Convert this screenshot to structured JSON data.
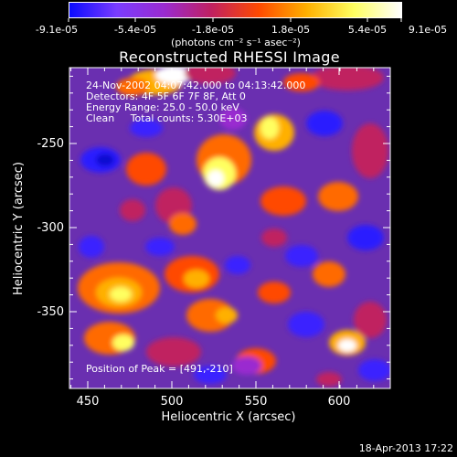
{
  "colorbar": {
    "tick_labels": [
      "-9.1e-05",
      "-5.4e-05",
      "-1.8e-05",
      "1.8e-05",
      "5.4e-05",
      "9.1e-05"
    ],
    "units": "(photons cm⁻² s⁻¹ asec⁻²)",
    "colors": [
      "#0a0aff",
      "#7a3cff",
      "#9a2bd0",
      "#c02060",
      "#ff4a00",
      "#ffb000",
      "#ffff60",
      "#ffffff"
    ]
  },
  "plot": {
    "title": "Reconstructed RHESSI Image",
    "info_lines": [
      "24-Nov-2002 04:07:42.000 to 04:13:42.000",
      "Detectors: 4F 5F 6F 7F 8F, Att 0",
      "Energy Range: 25.0 - 50.0 keV",
      "Clean     Total counts: 5.30E+03"
    ],
    "peak_label": "Position of Peak = [491,-210]",
    "xlabel": "Heliocentric X (arcsec)",
    "ylabel": "Heliocentric Y (arcsec)",
    "x_tick_labels": [
      "450",
      "500",
      "550",
      "600"
    ],
    "y_tick_labels": [
      "-250",
      "-300",
      "-350"
    ]
  },
  "footer": {
    "timestamp": "18-Apr-2013 17:22"
  }
}
